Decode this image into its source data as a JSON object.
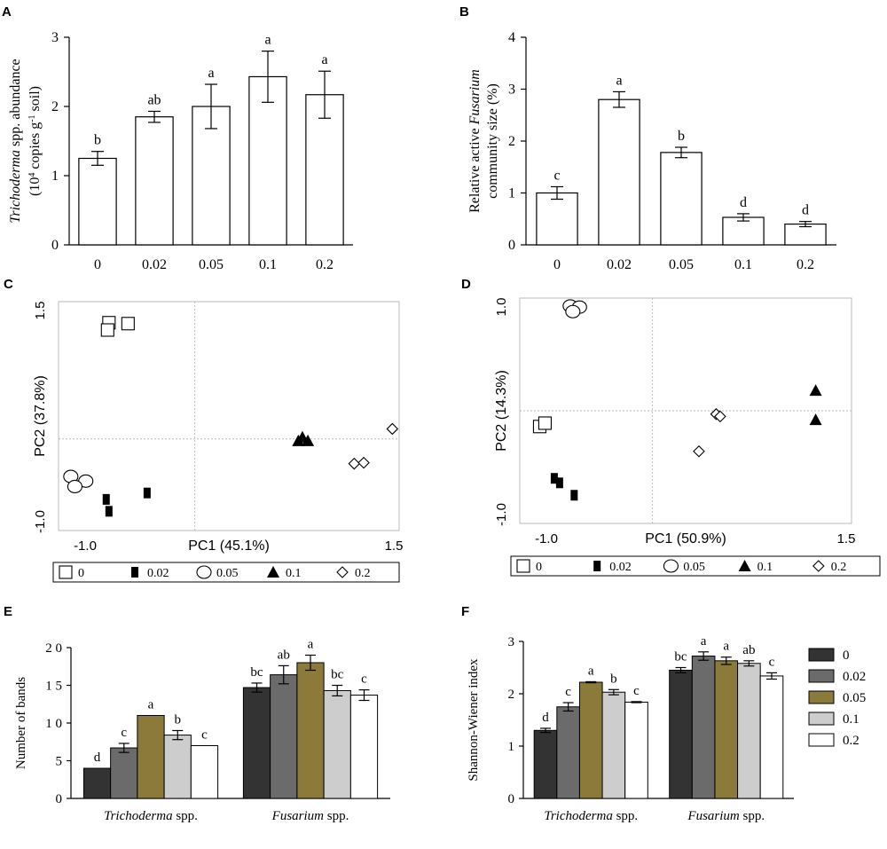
{
  "colors": {
    "ink": "#000000",
    "dark": "#333333",
    "gray": "#6b6b6b",
    "olive": "#8b7a3a",
    "light": "#cdcdcd",
    "white": "#ffffff",
    "grid": "#bbbbbb"
  },
  "chart_data": [
    {
      "panel": "A",
      "type": "bar",
      "categories": [
        "0",
        "0.02",
        "0.05",
        "0.1",
        "0.2"
      ],
      "values": [
        1.25,
        1.85,
        2.0,
        2.43,
        2.17
      ],
      "errors": [
        0.1,
        0.08,
        0.32,
        0.37,
        0.34
      ],
      "letters": [
        "b",
        "ab",
        "a",
        "a",
        "a"
      ],
      "ylim": [
        0,
        3
      ],
      "yticks": [
        "0",
        "1",
        "2",
        "3"
      ],
      "ylabel_lines": [
        "Trichoderma spp. abundance",
        "(10^4 copies g^-1 soil)"
      ],
      "ylabel_italic": "Trichoderma",
      "ylabel_rest": " spp. abundance",
      "ylabel2_a": "(10",
      "ylabel2_exp1": "4",
      "ylabel2_b": " copies g",
      "ylabel2_exp2": "-1",
      "ylabel2_c": " soil)"
    },
    {
      "panel": "B",
      "type": "bar",
      "categories": [
        "0",
        "0.02",
        "0.05",
        "0.1",
        "0.2"
      ],
      "values": [
        1.0,
        2.8,
        1.78,
        0.53,
        0.4
      ],
      "errors": [
        0.12,
        0.15,
        0.1,
        0.07,
        0.05
      ],
      "letters": [
        "c",
        "a",
        "b",
        "d",
        "d"
      ],
      "ylim": [
        0,
        4
      ],
      "yticks": [
        "0",
        "1",
        "2",
        "3",
        "4"
      ],
      "ylabel1_a": "Relative active ",
      "ylabel1_italic": "Fusarium",
      "ylabel2": "community size (%)"
    },
    {
      "panel": "C",
      "type": "scatter",
      "xlim": [
        -1.0,
        1.5
      ],
      "ylim": [
        -1.0,
        1.5
      ],
      "xticks": [
        "-1.0",
        "1.5"
      ],
      "yticks": [
        "1.5",
        "-1.0"
      ],
      "xlabel": "PC1 (45.1%)",
      "ylabel": "PC2 (37.8%)",
      "points": {
        "0": [
          [
            -0.63,
            1.27
          ],
          [
            -0.49,
            1.26
          ],
          [
            -0.64,
            1.19
          ]
        ],
        "0.02": [
          [
            -0.65,
            -0.66
          ],
          [
            -0.35,
            -0.59
          ],
          [
            -0.63,
            -0.79
          ]
        ],
        "0.05": [
          [
            -0.91,
            -0.41
          ],
          [
            -0.8,
            -0.46
          ],
          [
            -0.88,
            -0.52
          ]
        ],
        "0.1": [
          [
            0.76,
            -0.02
          ],
          [
            0.79,
            0.02
          ],
          [
            0.83,
            -0.02
          ]
        ],
        "0.2": [
          [
            1.17,
            -0.27
          ],
          [
            1.24,
            -0.26
          ],
          [
            1.45,
            0.11
          ]
        ]
      }
    },
    {
      "panel": "D",
      "type": "scatter",
      "xlim": [
        -1.0,
        1.5
      ],
      "ylim": [
        -1.0,
        1.0
      ],
      "xticks": [
        "-1.0",
        "1.5"
      ],
      "yticks": [
        "1.0",
        "-1.0"
      ],
      "xlabel": "PC1 (50.9%)",
      "ylabel": "PC2 (14.3%)",
      "points": {
        "0": [
          [
            -0.85,
            -0.14
          ],
          [
            -0.81,
            -0.11
          ]
        ],
        "0.02": [
          [
            -0.74,
            -0.6
          ],
          [
            -0.7,
            -0.64
          ],
          [
            -0.59,
            -0.75
          ]
        ],
        "0.05": [
          [
            -0.62,
            0.93
          ],
          [
            -0.55,
            0.92
          ],
          [
            -0.6,
            0.88
          ]
        ],
        "0.1": [
          [
            1.23,
            0.18
          ],
          [
            1.23,
            -0.08
          ]
        ],
        "0.2": [
          [
            0.48,
            -0.03
          ],
          [
            0.51,
            -0.05
          ],
          [
            0.35,
            -0.36
          ]
        ]
      }
    },
    {
      "panel": "E",
      "type": "bar",
      "groups": [
        "Trichoderma spp.",
        "Fusarium spp."
      ],
      "group_italic": [
        "Trichoderma",
        "Fusarium"
      ],
      "group_suffix": [
        " spp.",
        " spp."
      ],
      "series": [
        {
          "name": "0",
          "values": [
            4.0,
            14.7
          ],
          "errors": [
            0,
            0.6
          ],
          "letters": [
            "d",
            "bc"
          ]
        },
        {
          "name": "0.02",
          "values": [
            6.7,
            16.4
          ],
          "errors": [
            0.6,
            1.2
          ],
          "letters": [
            "c",
            "ab"
          ]
        },
        {
          "name": "0.05",
          "values": [
            11.0,
            18.0
          ],
          "errors": [
            0,
            1.0
          ],
          "letters": [
            "a",
            "a"
          ]
        },
        {
          "name": "0.1",
          "values": [
            8.4,
            14.3
          ],
          "errors": [
            0.6,
            0.7
          ],
          "letters": [
            "b",
            "bc"
          ]
        },
        {
          "name": "0.2",
          "values": [
            7.0,
            13.7
          ],
          "errors": [
            0,
            0.7
          ],
          "letters": [
            "c",
            "c"
          ]
        }
      ],
      "ylim": [
        0,
        20
      ],
      "yticks": [
        "0",
        "5",
        "1 0",
        "1 5",
        "2 0"
      ],
      "ylabel": "Number of bands"
    },
    {
      "panel": "F",
      "type": "bar",
      "groups": [
        "Trichoderma spp.",
        "Fusarium spp."
      ],
      "group_italic": [
        "Trichoderma",
        "Fusarium"
      ],
      "group_suffix": [
        " spp.",
        " spp."
      ],
      "series": [
        {
          "name": "0",
          "values": [
            1.3,
            2.45
          ],
          "errors": [
            0.04,
            0.05
          ],
          "letters": [
            "d",
            "bc"
          ]
        },
        {
          "name": "0.02",
          "values": [
            1.75,
            2.72
          ],
          "errors": [
            0.08,
            0.08
          ],
          "letters": [
            "c",
            "a"
          ]
        },
        {
          "name": "0.05",
          "values": [
            2.22,
            2.63
          ],
          "errors": [
            0.01,
            0.07
          ],
          "letters": [
            "a",
            "a"
          ]
        },
        {
          "name": "0.1",
          "values": [
            2.03,
            2.58
          ],
          "errors": [
            0.05,
            0.05
          ],
          "letters": [
            "b",
            "ab"
          ]
        },
        {
          "name": "0.2",
          "values": [
            1.84,
            2.34
          ],
          "errors": [
            0.01,
            0.06
          ],
          "letters": [
            "c",
            "c"
          ]
        }
      ],
      "ylim": [
        0,
        3
      ],
      "yticks": [
        "0",
        "1",
        "2",
        "3"
      ],
      "ylabel": "Shannon-Wiener index"
    }
  ],
  "legend_cd": [
    "0",
    "0.02",
    "0.05",
    "0.1",
    "0.2"
  ],
  "legend_f": [
    "0",
    "0.02",
    "0.05",
    "0.1",
    "0.2"
  ]
}
